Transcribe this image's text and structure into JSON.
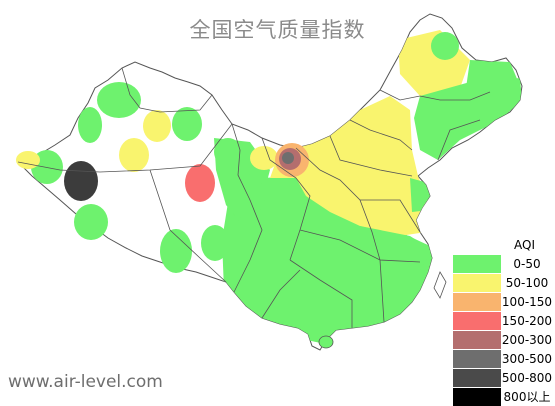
{
  "title": "全国空气质量指数",
  "watermark": "www.air-level.com",
  "legend": {
    "title": "AQI",
    "items": [
      {
        "label": "0-50",
        "color": "#6ef26e"
      },
      {
        "label": "50-100",
        "color": "#f9f46e"
      },
      {
        "label": "100-150",
        "color": "#f9b46e"
      },
      {
        "label": "150-200",
        "color": "#f96e6e"
      },
      {
        "label": "200-300",
        "color": "#b46e6e"
      },
      {
        "label": "300-500",
        "color": "#6e6e6e"
      },
      {
        "label": "500-800",
        "color": "#4a4a4a"
      },
      {
        "label": "800以上",
        "color": "#000000"
      }
    ]
  },
  "colors": {
    "border": "#555555",
    "good": "#6ef26e",
    "moderate": "#f9f46e",
    "sensitive": "#f9b46e",
    "unhealthy": "#f96e6e",
    "very_unhealthy": "#b46e6e",
    "hazardous": "#4a4a4a",
    "severe": "#3c3c3c"
  }
}
